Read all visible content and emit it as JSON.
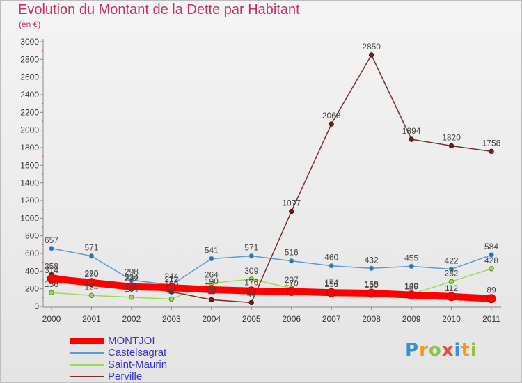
{
  "title": "Evolution du Montant de la Dette par Habitant",
  "subtitle": "(en €)",
  "logo_text": "Proxiti",
  "chart_data": {
    "type": "line",
    "title": "Evolution du Montant de la Dette par Habitant",
    "unit_label": "(en €)",
    "x": [
      "2000",
      "2001",
      "2002",
      "2003",
      "2004",
      "2005",
      "2006",
      "2007",
      "2008",
      "2009",
      "2010",
      "2011"
    ],
    "ylim": [
      0,
      3000
    ],
    "yticks": [
      0,
      200,
      400,
      600,
      800,
      1000,
      1200,
      1400,
      1600,
      1800,
      2000,
      2200,
      2400,
      2600,
      2800,
      3000
    ],
    "grid": false,
    "legend_position": "bottom-left",
    "series": [
      {
        "name": "MONTJOI",
        "color": "#ff0000",
        "values": [
          314,
          270,
          222,
          212,
          190,
          176,
          170,
          156,
          150,
          129,
          112,
          89
        ]
      },
      {
        "name": "Castelsagrat",
        "color": "#5b9bd5",
        "values": [
          657,
          571,
          298,
          244,
          541,
          571,
          516,
          460,
          432,
          455,
          422,
          584
        ]
      },
      {
        "name": "Saint-Maurin",
        "color": "#99dd55",
        "values": [
          156,
          124,
          104,
          83,
          264,
          309,
          207,
          174,
          158,
          140,
          282,
          428
        ]
      },
      {
        "name": "Perville",
        "color": "#7b2c2c",
        "values": [
          358,
          280,
          234,
          166,
          76,
          44,
          1077,
          2068,
          2850,
          1894,
          1820,
          1758
        ]
      }
    ]
  }
}
